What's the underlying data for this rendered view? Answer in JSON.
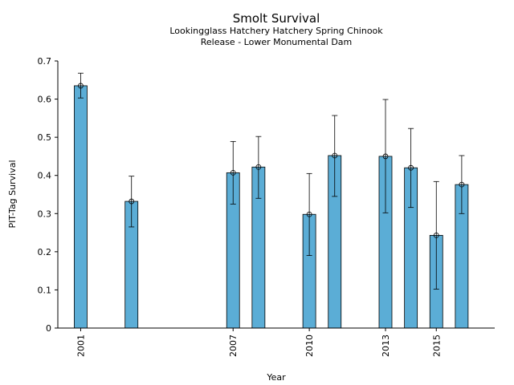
{
  "chart_data": {
    "type": "bar",
    "title": "Smolt Survival",
    "subtitle_lines": [
      "Lookingglass Hatchery Hatchery Spring Chinook",
      "Release - Lower Monumental Dam"
    ],
    "xlabel": "Year",
    "ylabel": "PIT-Tag Survival",
    "ylim": [
      0,
      0.7
    ],
    "xlim": [
      2000.1,
      2017.3
    ],
    "yticks": [
      "0",
      "0.1",
      "0.2",
      "0.3",
      "0.4",
      "0.5",
      "0.6",
      "0.7"
    ],
    "xticks": [
      "2001",
      "2007",
      "2010",
      "2013",
      "2015"
    ],
    "grid": false,
    "bar_color": "#5badd6",
    "bars": [
      {
        "year": 2001,
        "value": 0.635,
        "err_low": 0.603,
        "err_high": 0.668
      },
      {
        "year": 2003,
        "value": 0.332,
        "err_low": 0.265,
        "err_high": 0.398
      },
      {
        "year": 2007,
        "value": 0.407,
        "err_low": 0.325,
        "err_high": 0.489
      },
      {
        "year": 2008,
        "value": 0.422,
        "err_low": 0.34,
        "err_high": 0.502
      },
      {
        "year": 2010,
        "value": 0.298,
        "err_low": 0.19,
        "err_high": 0.405
      },
      {
        "year": 2011,
        "value": 0.452,
        "err_low": 0.345,
        "err_high": 0.557
      },
      {
        "year": 2013,
        "value": 0.45,
        "err_low": 0.302,
        "err_high": 0.599
      },
      {
        "year": 2014,
        "value": 0.42,
        "err_low": 0.316,
        "err_high": 0.523
      },
      {
        "year": 2015,
        "value": 0.243,
        "err_low": 0.102,
        "err_high": 0.384
      },
      {
        "year": 2016,
        "value": 0.376,
        "err_low": 0.3,
        "err_high": 0.452
      }
    ]
  }
}
